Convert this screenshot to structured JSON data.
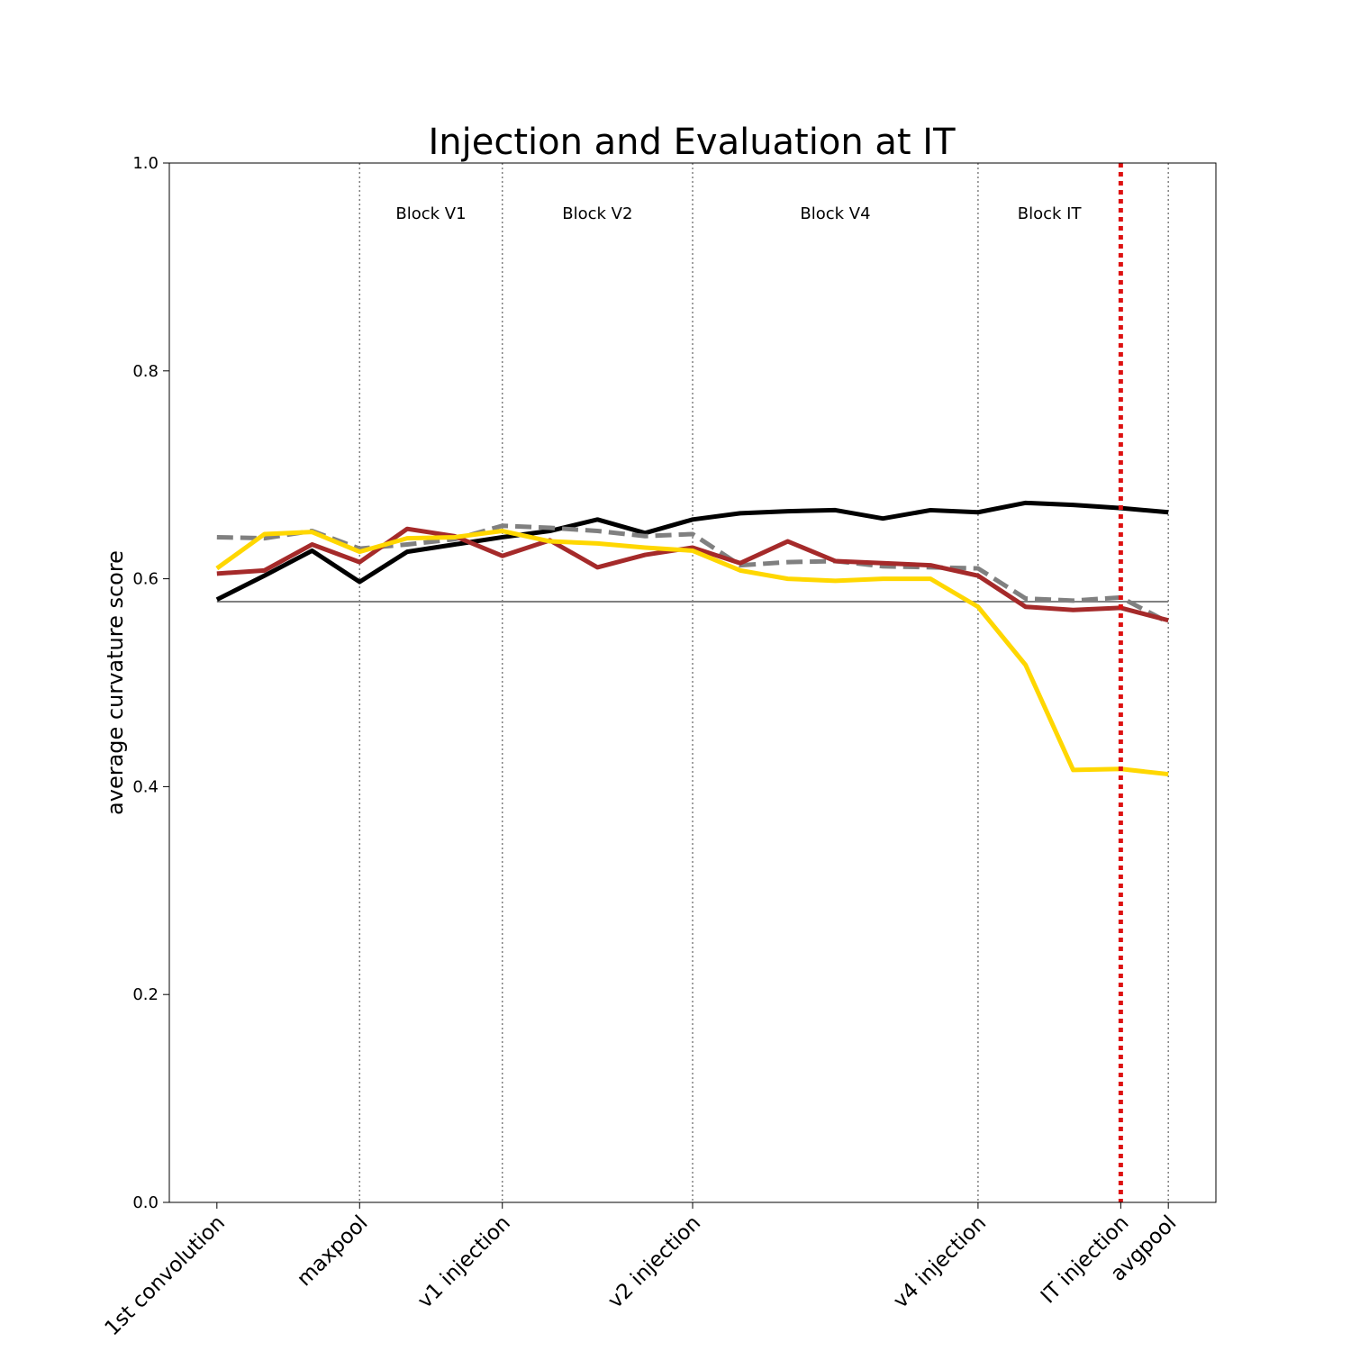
{
  "chart_data": {
    "type": "line",
    "title": "Injection and Evaluation at IT",
    "xlabel": "",
    "ylabel": "average curvature score",
    "ylim": [
      0,
      1.0
    ],
    "yticks": [
      0.0,
      0.2,
      0.4,
      0.6,
      0.8,
      1.0
    ],
    "ytick_labels": [
      "0.0",
      "0.2",
      "0.4",
      "0.6",
      "0.8",
      "1.0"
    ],
    "xlim": [
      -1,
      21
    ],
    "xticks": [
      {
        "x": 0,
        "label": "1st convolution"
      },
      {
        "x": 3,
        "label": "maxpool"
      },
      {
        "x": 6,
        "label": "v1 injection"
      },
      {
        "x": 10,
        "label": "v2 injection"
      },
      {
        "x": 16,
        "label": "v4 injection"
      },
      {
        "x": 19,
        "label": "IT injection"
      },
      {
        "x": 20,
        "label": "avgpool"
      }
    ],
    "block_dividers": [
      3,
      6,
      10,
      16,
      20
    ],
    "block_labels": [
      {
        "x": 4.5,
        "text": "Block V1"
      },
      {
        "x": 8,
        "text": "Block V2"
      },
      {
        "x": 13,
        "text": "Block V4"
      },
      {
        "x": 17.5,
        "text": "Block IT"
      }
    ],
    "injection_marker": {
      "x": 19,
      "color": "#dd1111"
    },
    "baseline": {
      "y": 0.578,
      "color": "#808080"
    },
    "grid": false,
    "legend": "none",
    "x": [
      0,
      1,
      2,
      3,
      4,
      5,
      6,
      7,
      8,
      9,
      10,
      11,
      12,
      13,
      14,
      15,
      16,
      17,
      18,
      19,
      20
    ],
    "series": [
      {
        "color": "#000000",
        "style": "solid",
        "values": [
          0.58,
          0.603,
          0.627,
          0.597,
          0.626,
          0.633,
          0.64,
          0.646,
          0.657,
          0.644,
          0.657,
          0.663,
          0.665,
          0.666,
          0.658,
          0.666,
          0.664,
          0.673,
          0.671,
          0.668,
          0.664
        ]
      },
      {
        "color": "#808080",
        "style": "dashed",
        "values": [
          0.64,
          0.639,
          0.646,
          0.629,
          0.633,
          0.638,
          0.651,
          0.649,
          0.646,
          0.641,
          0.643,
          0.613,
          0.616,
          0.617,
          0.612,
          0.611,
          0.61,
          0.581,
          0.579,
          0.582,
          0.558
        ]
      },
      {
        "color": "#a52a2a",
        "style": "solid",
        "values": [
          0.605,
          0.608,
          0.633,
          0.616,
          0.648,
          0.641,
          0.622,
          0.637,
          0.611,
          0.623,
          0.63,
          0.615,
          0.636,
          0.617,
          0.615,
          0.613,
          0.603,
          0.573,
          0.57,
          0.572,
          0.56
        ]
      },
      {
        "color": "#ffd700",
        "style": "solid",
        "values": [
          0.61,
          0.643,
          0.645,
          0.626,
          0.639,
          0.64,
          0.646,
          0.636,
          0.634,
          0.63,
          0.627,
          0.608,
          0.6,
          0.598,
          0.6,
          0.6,
          0.573,
          0.517,
          0.416,
          0.417,
          0.412
        ]
      }
    ]
  }
}
